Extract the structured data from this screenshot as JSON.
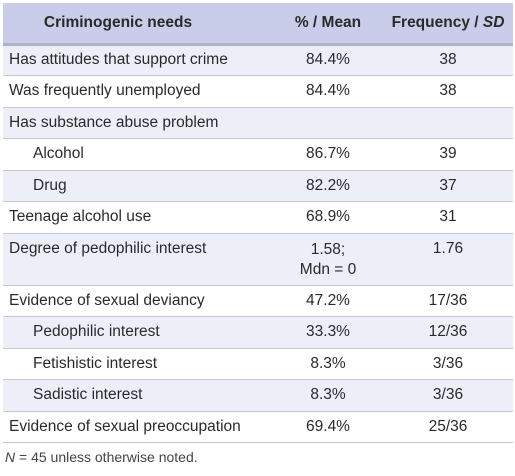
{
  "table": {
    "headers": {
      "needs": "Criminogenic needs",
      "mean": "% / Mean",
      "freq_prefix": "Frequency / ",
      "freq_sd": "SD"
    },
    "rows": [
      {
        "label": "Has attitudes that support crime",
        "mean": "84.4%",
        "freq": "38",
        "indent": false
      },
      {
        "label": "Was frequently unemployed",
        "mean": "84.4%",
        "freq": "38",
        "indent": false
      },
      {
        "label": "Has substance abuse problem",
        "mean": "",
        "freq": "",
        "indent": false
      },
      {
        "label": "Alcohol",
        "mean": "86.7%",
        "freq": "39",
        "indent": true
      },
      {
        "label": "Drug",
        "mean": "82.2%",
        "freq": "37",
        "indent": true
      },
      {
        "label": "Teenage alcohol use",
        "mean": "68.9%",
        "freq": "31",
        "indent": false
      },
      {
        "label": "Degree of pedophilic interest",
        "mean": "1.58;",
        "mean_line2": "Mdn = 0",
        "freq": "1.76",
        "indent": false
      },
      {
        "label": "Evidence of sexual deviancy",
        "mean": "47.2%",
        "freq": "17/36",
        "indent": false
      },
      {
        "label": "Pedophilic interest",
        "mean": "33.3%",
        "freq": "12/36",
        "indent": true
      },
      {
        "label": "Fetishistic interest",
        "mean": "8.3%",
        "freq": "3/36",
        "indent": true
      },
      {
        "label": "Sadistic interest",
        "mean": "8.3%",
        "freq": "3/36",
        "indent": true
      },
      {
        "label": "Evidence of sexual preoccupation",
        "mean": "69.4%",
        "freq": "25/36",
        "indent": false
      }
    ]
  },
  "note": {
    "n_symbol": "N",
    "text": " = 45 unless otherwise noted."
  },
  "colors": {
    "header_bg": "#c9cde9",
    "stripe_bg": "#eceef8",
    "row_border": "#c6c6d4"
  }
}
